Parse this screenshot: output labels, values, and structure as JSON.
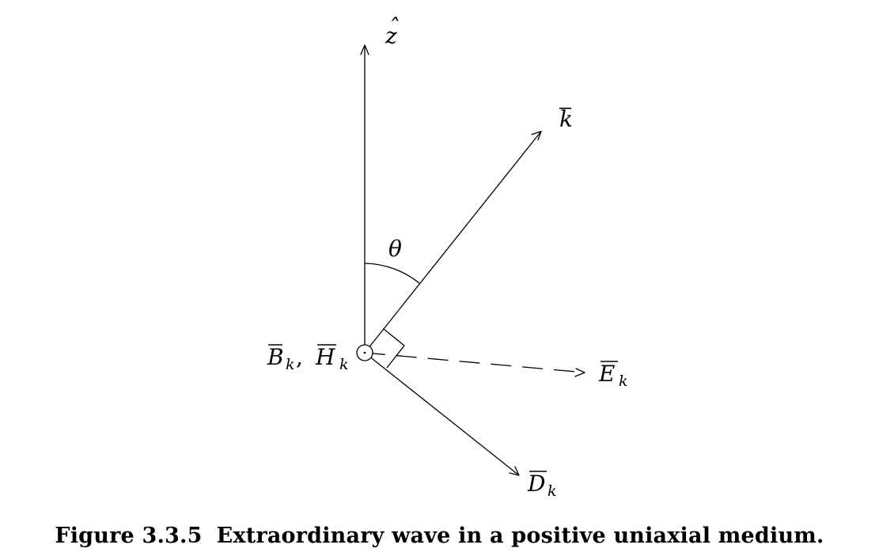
{
  "figure": {
    "number": "Figure 3.3.5",
    "title": "Extraordinary wave in a positive uniaxial medium."
  },
  "labels": {
    "z_axis": {
      "base": "z",
      "accent": "ˆ"
    },
    "k_vector": {
      "base": "k"
    },
    "angle": {
      "base": "θ"
    },
    "origin": {
      "b": "B",
      "b_sub": "k",
      "sep": ",",
      "h": "H",
      "h_sub": "k"
    },
    "e_vector": {
      "base": "E",
      "sub": "k"
    },
    "d_vector": {
      "base": "D",
      "sub": "k"
    }
  }
}
